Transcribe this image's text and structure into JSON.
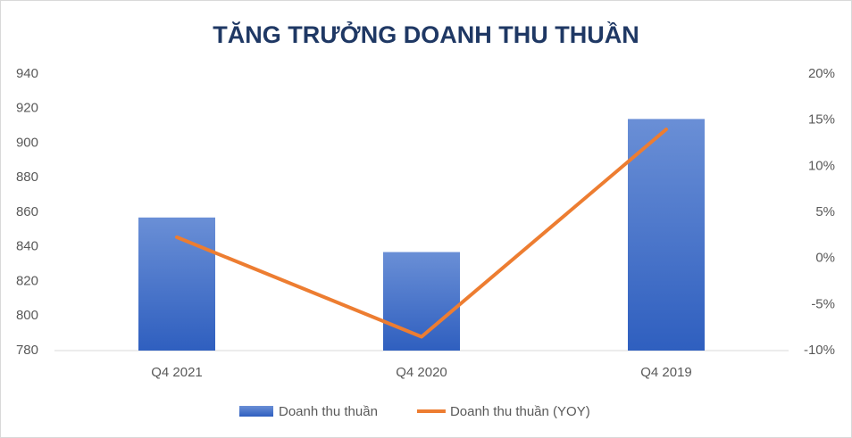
{
  "chart_data": {
    "type": "combo",
    "title": "TĂNG TRƯỞNG DOANH THU THUẦN",
    "categories": [
      "Q4 2021",
      "Q4 2020",
      "Q4 2019"
    ],
    "series": [
      {
        "name": "Doanh thu thuần",
        "type": "bar",
        "color": "#4472c4",
        "values": [
          857,
          837,
          914
        ]
      },
      {
        "name": "Doanh thu thuần (YOY)",
        "type": "line",
        "axis": "y2",
        "color": "#ed7d31",
        "values": [
          2.3,
          -8.5,
          14
        ]
      }
    ],
    "ylim": [
      780,
      940
    ],
    "yticks": [
      780,
      800,
      820,
      840,
      860,
      880,
      900,
      920,
      940
    ],
    "y2lim": [
      -10,
      20
    ],
    "y2ticks": [
      {
        "value": -10,
        "label": "-10%"
      },
      {
        "value": -5,
        "label": "-5%"
      },
      {
        "value": 0,
        "label": "0%"
      },
      {
        "value": 5,
        "label": "5%"
      },
      {
        "value": 10,
        "label": "10%"
      },
      {
        "value": 15,
        "label": "15%"
      },
      {
        "value": 20,
        "label": "20%"
      }
    ],
    "grid": false,
    "legend": "bottom"
  }
}
